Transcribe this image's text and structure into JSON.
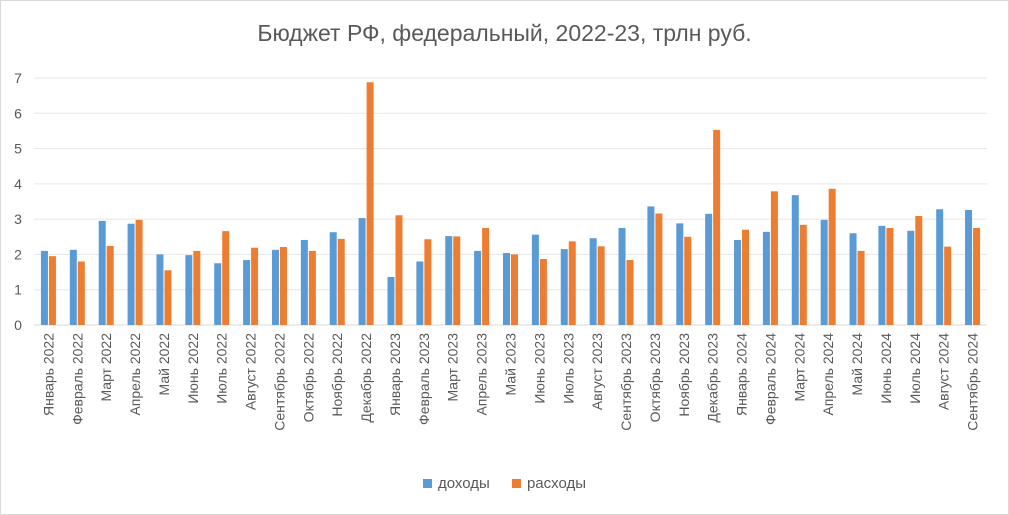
{
  "chart_data": {
    "type": "bar",
    "title": "Бюджет РФ, федеральный, 2022-23, трлн руб.",
    "xlabel": "",
    "ylabel": "",
    "ylim": [
      0,
      7
    ],
    "yticks": [
      0,
      1,
      2,
      3,
      4,
      5,
      6,
      7
    ],
    "grid": true,
    "legend_position": "bottom",
    "categories": [
      "Январь 2022",
      "Февраль 2022",
      "Март 2022",
      "Апрель 2022",
      "Май 2022",
      "Июнь 2022",
      "Июль 2022",
      "Август 2022",
      "Сентябрь 2022",
      "Октябрь 2022",
      "Ноябрь 2022",
      "Декабрь 2022",
      "Январь 2023",
      "Февраль 2023",
      "Март 2023",
      "Апрель 2023",
      "Май 2023",
      "Июнь 2023",
      "Июль 2023",
      "Август 2023",
      "Сентябрь 2023",
      "Октябрь 2023",
      "Ноябрь 2023",
      "Декабрь 2023",
      "Январь 2024",
      "Февраль 2024",
      "Март 2024",
      "Апрель 2024",
      "Май 2024",
      "Июнь 2024",
      "Июль 2024",
      "Август 2024",
      "Сентябрь 2024"
    ],
    "series": [
      {
        "name": "доходы",
        "color": "#5b9bd5",
        "values": [
          2.1,
          2.13,
          2.95,
          2.87,
          2.0,
          1.98,
          1.75,
          1.84,
          2.13,
          2.41,
          2.63,
          3.03,
          1.36,
          1.8,
          2.52,
          2.1,
          2.04,
          2.56,
          2.15,
          2.46,
          2.75,
          3.36,
          2.88,
          3.15,
          2.41,
          2.64,
          3.68,
          2.98,
          2.6,
          2.81,
          2.67,
          3.28,
          3.26
        ]
      },
      {
        "name": "расходы",
        "color": "#ed7d31",
        "values": [
          1.95,
          1.8,
          2.24,
          2.98,
          1.55,
          2.1,
          2.66,
          2.19,
          2.21,
          2.1,
          2.44,
          6.88,
          3.11,
          2.43,
          2.51,
          2.75,
          2.0,
          1.87,
          2.37,
          2.23,
          1.84,
          3.16,
          2.5,
          5.53,
          2.7,
          3.79,
          2.84,
          3.86,
          2.1,
          2.75,
          3.09,
          2.22,
          2.75
        ]
      }
    ]
  }
}
